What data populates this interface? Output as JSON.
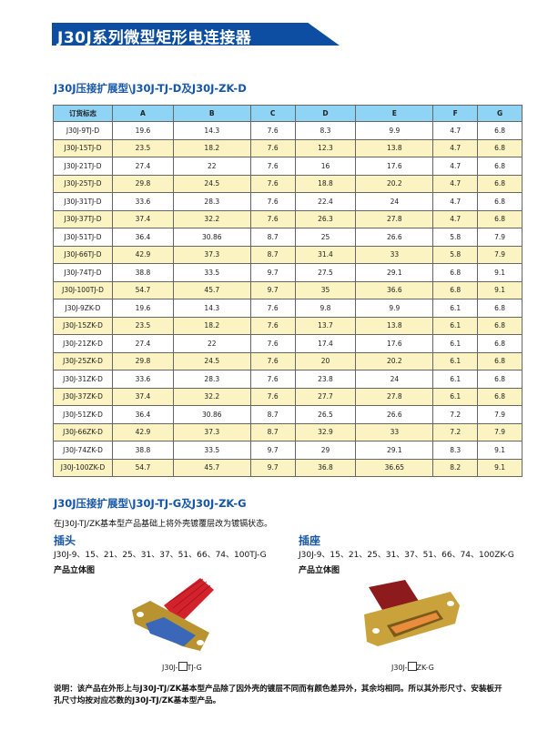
{
  "title": "J30J系列微型矩形电连接器",
  "section1": {
    "title": "J30J压接扩展型\\J30J-TJ-D及J30J-ZK-D"
  },
  "table": {
    "headers": [
      "订货标志",
      "A",
      "B",
      "C",
      "D",
      "E",
      "F",
      "G"
    ],
    "rows": [
      [
        "J30J-9TJ-D",
        "19.6",
        "14.3",
        "7.6",
        "8.3",
        "9.9",
        "4.7",
        "6.8"
      ],
      [
        "J30J-15TJ-D",
        "23.5",
        "18.2",
        "7.6",
        "12.3",
        "13.8",
        "4.7",
        "6.8"
      ],
      [
        "J30J-21TJ-D",
        "27.4",
        "22",
        "7.6",
        "16",
        "17.6",
        "4.7",
        "6.8"
      ],
      [
        "J30J-25TJ-D",
        "29.8",
        "24.5",
        "7.6",
        "18.8",
        "20.2",
        "4.7",
        "6.8"
      ],
      [
        "J30J-31TJ-D",
        "33.6",
        "28.3",
        "7.6",
        "22.4",
        "24",
        "4.7",
        "6.8"
      ],
      [
        "J30J-37TJ-D",
        "37.4",
        "32.2",
        "7.6",
        "26.3",
        "27.8",
        "4.7",
        "6.8"
      ],
      [
        "J30J-51TJ-D",
        "36.4",
        "30.86",
        "8.7",
        "25",
        "26.6",
        "5.8",
        "7.9"
      ],
      [
        "J30J-66TJ-D",
        "42.9",
        "37.3",
        "8.7",
        "31.4",
        "33",
        "5.8",
        "7.9"
      ],
      [
        "J30J-74TJ-D",
        "38.8",
        "33.5",
        "9.7",
        "27.5",
        "29.1",
        "6.8",
        "9.1"
      ],
      [
        "J30J-100TJ-D",
        "54.7",
        "45.7",
        "9.7",
        "35",
        "36.6",
        "6.8",
        "9.1"
      ],
      [
        "J30J-9ZK-D",
        "19.6",
        "14.3",
        "7.6",
        "9.8",
        "9.9",
        "6.1",
        "6.8"
      ],
      [
        "J30J-15ZK-D",
        "23.5",
        "18.2",
        "7.6",
        "13.7",
        "13.8",
        "6.1",
        "6.8"
      ],
      [
        "J30J-21ZK-D",
        "27.4",
        "22",
        "7.6",
        "17.4",
        "17.6",
        "6.1",
        "6.8"
      ],
      [
        "J30J-25ZK-D",
        "29.8",
        "24.5",
        "7.6",
        "20",
        "20.2",
        "6.1",
        "6.8"
      ],
      [
        "J30J-31ZK-D",
        "33.6",
        "28.3",
        "7.6",
        "23.8",
        "24",
        "6.1",
        "6.8"
      ],
      [
        "J30J-37ZK-D",
        "37.4",
        "32.2",
        "7.6",
        "27.7",
        "27.8",
        "6.1",
        "6.8"
      ],
      [
        "J30J-51ZK-D",
        "36.4",
        "30.86",
        "8.7",
        "26.5",
        "26.6",
        "7.2",
        "7.9"
      ],
      [
        "J30J-66ZK-D",
        "42.9",
        "37.3",
        "8.7",
        "32.9",
        "33",
        "7.2",
        "7.9"
      ],
      [
        "J30J-74ZK-D",
        "38.8",
        "33.5",
        "9.7",
        "29",
        "29.1",
        "8.3",
        "9.1"
      ],
      [
        "J30J-100ZK-D",
        "54.7",
        "45.7",
        "9.7",
        "36.8",
        "36.65",
        "8.2",
        "9.1"
      ]
    ]
  },
  "section2": {
    "title": "J30J压接扩展型\\J30J-TJ-G及J30J-ZK-G",
    "intro": "在J30J-TJ/ZK基本型产品基础上将外壳镀覆层改为镀镉状态。"
  },
  "plug": {
    "heading": "插头",
    "models": "J30J-9、15、21、25、31、37、51、66、74、100TJ-G",
    "view_label": "产品立体图",
    "caption_prefix": "J30J-",
    "caption_suffix": "TJ-G"
  },
  "socket": {
    "heading": "插座",
    "models": "J30J-9、15、21、25、31、37、51、66、74、100ZK-G",
    "view_label": "产品立体图",
    "caption_prefix": "J30J-",
    "caption_suffix": "ZK-G"
  },
  "note": "说明：该产品在外形上与J30J-TJ/ZK基本型产品除了因外壳的镀层不同而有颜色差异外，其余均相同。所以其外形尺寸、安装板开孔尺寸均按对应芯数的J30J-TJ/ZK基本型产品。",
  "colors": {
    "brand": "#0d4ea3",
    "header_bg": "#8fd3f5",
    "alt_row": "#fbf3c1"
  }
}
